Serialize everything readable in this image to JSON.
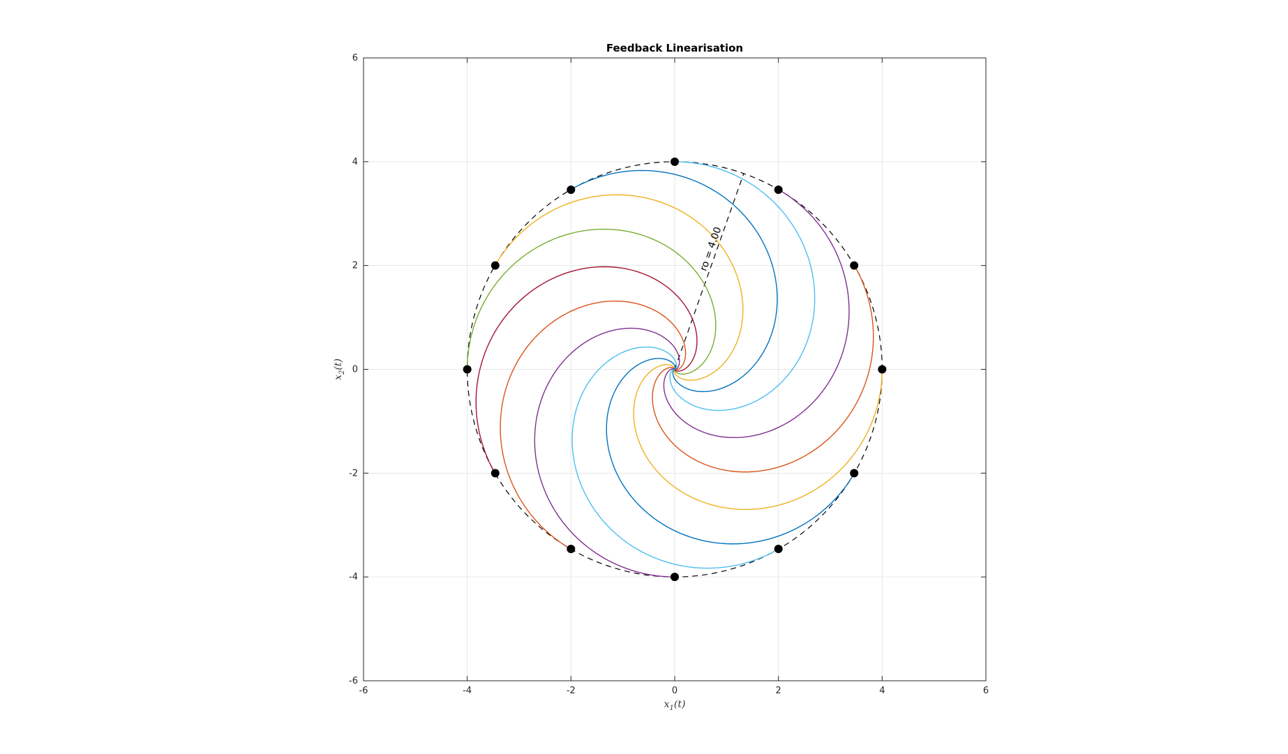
{
  "chart_data": {
    "type": "line",
    "title": "Feedback Linearisation",
    "xlabel": {
      "var": "x",
      "sub": "1",
      "arg": "(t)"
    },
    "ylabel": {
      "var": "x",
      "sub": "2",
      "arg": "(t)"
    },
    "xlim": [
      -6,
      6
    ],
    "ylim": [
      -6,
      6
    ],
    "xticks": [
      -6,
      -4,
      -2,
      0,
      2,
      4,
      6
    ],
    "yticks": [
      -6,
      -4,
      -2,
      0,
      2,
      4,
      6
    ],
    "xtick_labels": [
      "-6",
      "-4",
      "-2",
      "0",
      "2",
      "4",
      "6"
    ],
    "ytick_labels": [
      "-6",
      "-4",
      "-2",
      "0",
      "2",
      "4",
      "6"
    ],
    "grid": true,
    "boundary_circle": {
      "center": [
        0,
        0
      ],
      "radius": 4,
      "style": "dashed",
      "color": "#000000"
    },
    "radius_line": {
      "from": [
        0,
        0
      ],
      "to": [
        1.33,
        3.77
      ],
      "style": "dashed"
    },
    "annotation": {
      "text": "ro = 4.00",
      "at": [
        0.75,
        2.3
      ]
    },
    "initial_points": [
      [
        4,
        0
      ],
      [
        3.46,
        2
      ],
      [
        2,
        3.46
      ],
      [
        0,
        4
      ],
      [
        -2,
        3.46
      ],
      [
        -3.46,
        2
      ],
      [
        -4,
        0
      ],
      [
        -3.46,
        -2
      ],
      [
        -2,
        -3.46
      ],
      [
        0,
        -4
      ],
      [
        2,
        -3.46
      ],
      [
        3.46,
        -2
      ]
    ],
    "trajectory_shape": {
      "type": "spiral-to-origin",
      "rate": 2.2,
      "decay": 4.0
    },
    "series": [
      {
        "start_angle_deg": 0,
        "color": "#EDB120"
      },
      {
        "start_angle_deg": 30,
        "color": "#D95319"
      },
      {
        "start_angle_deg": 60,
        "color": "#7E2F8E"
      },
      {
        "start_angle_deg": 90,
        "color": "#4DBEEE"
      },
      {
        "start_angle_deg": 120,
        "color": "#0072BD"
      },
      {
        "start_angle_deg": 150,
        "color": "#EDB120"
      },
      {
        "start_angle_deg": 180,
        "color": "#77AC30"
      },
      {
        "start_angle_deg": 210,
        "color": "#A2142F"
      },
      {
        "start_angle_deg": 240,
        "color": "#D95319"
      },
      {
        "start_angle_deg": 270,
        "color": "#7E2F8E"
      },
      {
        "start_angle_deg": 300,
        "color": "#4DBEEE"
      },
      {
        "start_angle_deg": 330,
        "color": "#0072BD"
      }
    ]
  }
}
